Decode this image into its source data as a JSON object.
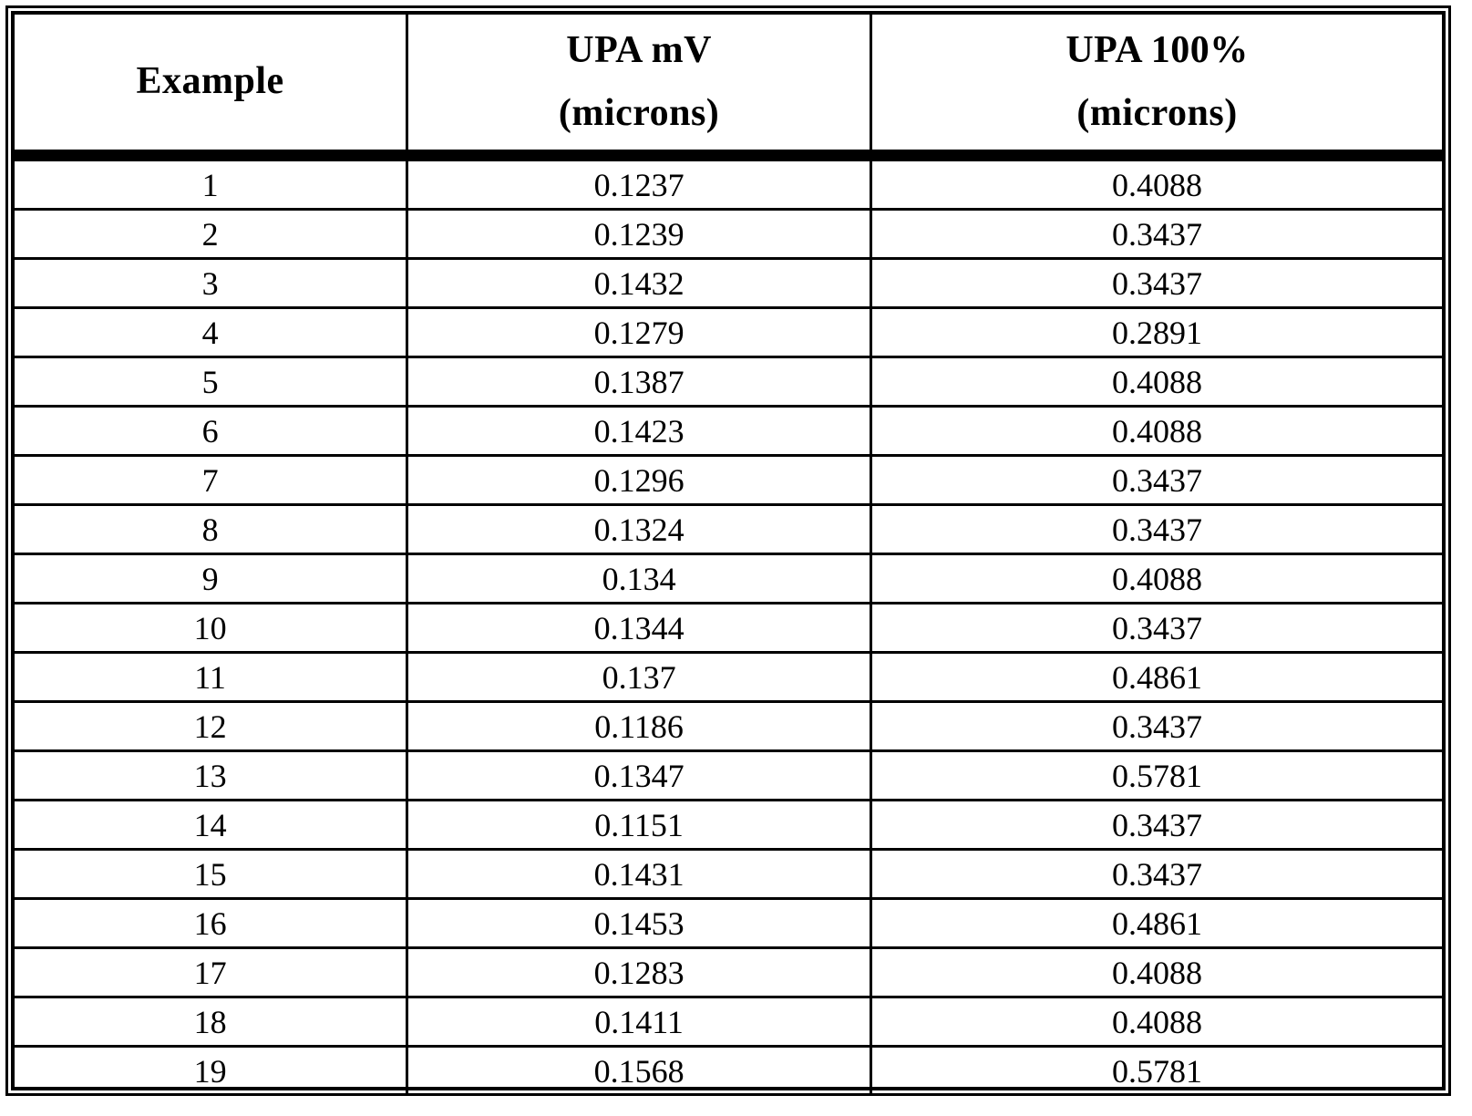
{
  "table": {
    "columns": [
      {
        "label": "Example",
        "sublabel": ""
      },
      {
        "label": "UPA mV",
        "sublabel": "(microns)"
      },
      {
        "label": "UPA 100%",
        "sublabel": "(microns)"
      }
    ],
    "rows": [
      [
        "1",
        "0.1237",
        "0.4088"
      ],
      [
        "2",
        "0.1239",
        "0.3437"
      ],
      [
        "3",
        "0.1432",
        "0.3437"
      ],
      [
        "4",
        "0.1279",
        "0.2891"
      ],
      [
        "5",
        "0.1387",
        "0.4088"
      ],
      [
        "6",
        "0.1423",
        "0.4088"
      ],
      [
        "7",
        "0.1296",
        "0.3437"
      ],
      [
        "8",
        "0.1324",
        "0.3437"
      ],
      [
        "9",
        "0.134",
        "0.4088"
      ],
      [
        "10",
        "0.1344",
        "0.3437"
      ],
      [
        "11",
        "0.137",
        "0.4861"
      ],
      [
        "12",
        "0.1186",
        "0.3437"
      ],
      [
        "13",
        "0.1347",
        "0.5781"
      ],
      [
        "14",
        "0.1151",
        "0.3437"
      ],
      [
        "15",
        "0.1431",
        "0.3437"
      ],
      [
        "16",
        "0.1453",
        "0.4861"
      ],
      [
        "17",
        "0.1283",
        "0.4088"
      ],
      [
        "18",
        "0.1411",
        "0.4088"
      ],
      [
        "19",
        "0.1568",
        "0.5781"
      ]
    ]
  },
  "colors": {
    "ink": "#000000",
    "paper": "#ffffff"
  }
}
